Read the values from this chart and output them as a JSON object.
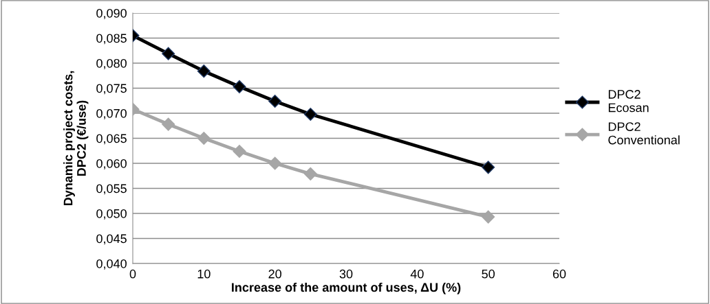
{
  "chart_data": {
    "type": "line",
    "xlabel": "Increase of the amount of uses, ΔU (%)",
    "ylabel": "Dynamic project costs,\nDPC2 (€/use)",
    "x": [
      0,
      5,
      10,
      15,
      20,
      25,
      50
    ],
    "series": [
      {
        "name": "DPC2\nEcosan",
        "color": "#000000",
        "values": [
          0.0855,
          0.0819,
          0.0784,
          0.0753,
          0.0724,
          0.0698,
          0.0592
        ]
      },
      {
        "name": "DPC2\nConventional",
        "color": "#a6a6a6",
        "values": [
          0.0708,
          0.0678,
          0.065,
          0.0624,
          0.06,
          0.0579,
          0.0493
        ]
      }
    ],
    "xlim": [
      0,
      60
    ],
    "xticks": [
      0,
      10,
      20,
      30,
      40,
      50,
      60
    ],
    "ylim": [
      0.04,
      0.09
    ],
    "yticks": [
      {
        "value": 0.04,
        "label": "0,040"
      },
      {
        "value": 0.045,
        "label": "0,045"
      },
      {
        "value": 0.05,
        "label": "0,050"
      },
      {
        "value": 0.055,
        "label": "0,055"
      },
      {
        "value": 0.06,
        "label": "0,060"
      },
      {
        "value": 0.065,
        "label": "0,065"
      },
      {
        "value": 0.07,
        "label": "0,070"
      },
      {
        "value": 0.075,
        "label": "0,075"
      },
      {
        "value": 0.08,
        "label": "0,080"
      },
      {
        "value": 0.085,
        "label": "0,085"
      },
      {
        "value": 0.09,
        "label": "0,090"
      }
    ],
    "grid": "y",
    "legend": "right",
    "marker": "diamond",
    "line_style": "solid"
  }
}
